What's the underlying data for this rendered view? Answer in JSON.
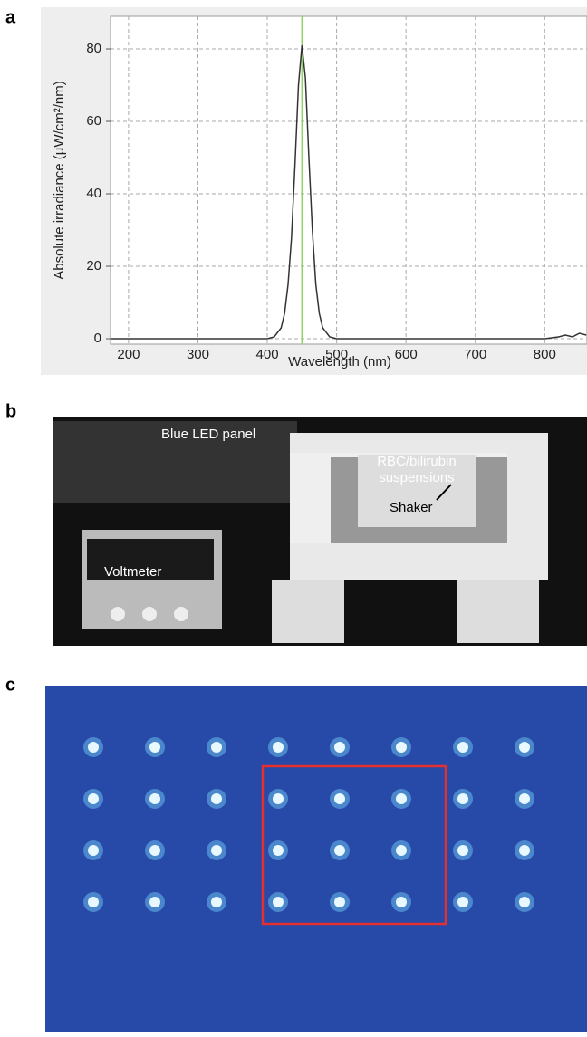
{
  "panel_labels": [
    "a",
    "b",
    "c"
  ],
  "chart_data": {
    "type": "line",
    "xlabel": "Wavelength (nm)",
    "ylabel": "Absolute irradiance (μW/cm²/nm)",
    "x": [
      175,
      400,
      410,
      420,
      425,
      430,
      435,
      440,
      445,
      450,
      455,
      460,
      465,
      470,
      475,
      480,
      490,
      500,
      800,
      820,
      830,
      840,
      850,
      860
    ],
    "values": [
      0,
      0,
      0.5,
      3,
      7,
      15,
      28,
      48,
      70,
      81,
      72,
      50,
      30,
      15,
      7,
      3,
      0.5,
      0,
      0,
      0.5,
      1,
      0.5,
      1.5,
      1
    ],
    "color": "#333333",
    "vline": {
      "x": 450,
      "color": "#8fd16a"
    },
    "xlim": [
      174,
      861
    ],
    "ylim": [
      -1.5,
      89
    ],
    "xticks": [
      200,
      300,
      400,
      500,
      600,
      700,
      800
    ],
    "yticks": [
      0,
      20,
      40,
      60,
      80
    ],
    "grid": true
  },
  "photo_b": {
    "annotations": [
      "Blue LED panel",
      "RBC/bilirubin",
      "suspensions",
      "Shaker",
      "Voltmeter"
    ]
  }
}
